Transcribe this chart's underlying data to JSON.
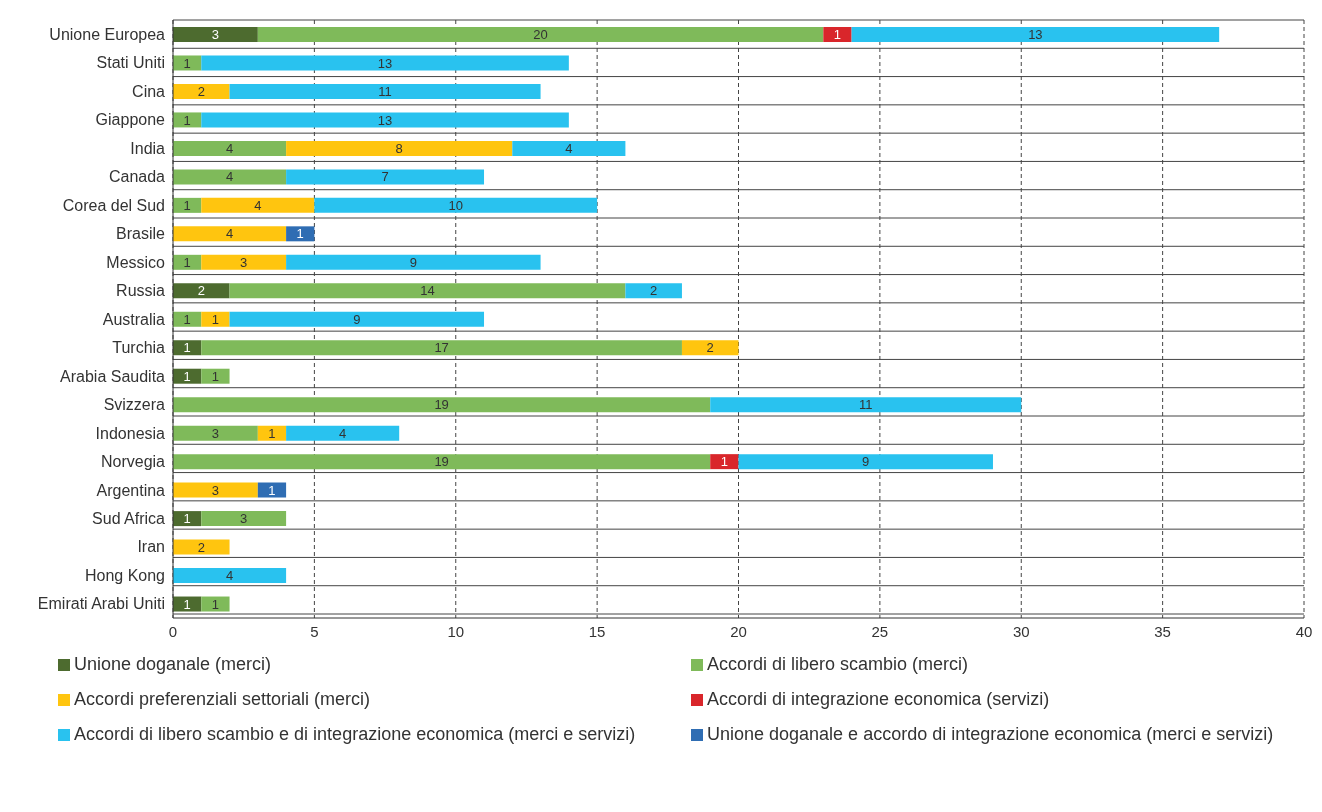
{
  "chart_data": {
    "type": "bar",
    "orientation": "horizontal",
    "stacked": true,
    "data_labels": true,
    "grid": true,
    "legend": "bottom",
    "categories": [
      "Unione Europea",
      "Stati Uniti",
      "Cina",
      "Giappone",
      "India",
      "Canada",
      "Corea del Sud",
      "Brasile",
      "Messico",
      "Russia",
      "Australia",
      "Turchia",
      "Arabia Saudita",
      "Svizzera",
      "Indonesia",
      "Norvegia",
      "Argentina",
      "Sud Africa",
      "Iran",
      "Hong Kong",
      "Emirati Arabi Uniti"
    ],
    "xlim": [
      0,
      40
    ],
    "xticks": [
      0,
      5,
      10,
      15,
      20,
      25,
      30,
      35,
      40
    ],
    "series": [
      {
        "name": "Unione doganale (merci)",
        "color": "#4d6b2f",
        "values": [
          3,
          null,
          null,
          null,
          null,
          null,
          null,
          null,
          null,
          2,
          null,
          1,
          1,
          null,
          null,
          null,
          null,
          1,
          null,
          null,
          1
        ]
      },
      {
        "name": "Accordi di libero scambio (merci)",
        "color": "#7fba5a",
        "values": [
          20,
          1,
          null,
          1,
          4,
          4,
          1,
          null,
          1,
          14,
          1,
          17,
          1,
          19,
          3,
          19,
          null,
          3,
          null,
          null,
          1
        ]
      },
      {
        "name": "Accordi preferenziali settoriali (merci)",
        "color": "#ffc50f",
        "values": [
          null,
          null,
          2,
          null,
          8,
          null,
          4,
          4,
          3,
          null,
          1,
          2,
          null,
          null,
          1,
          null,
          3,
          null,
          2,
          null,
          null
        ]
      },
      {
        "name": "Accordi di integrazione economica (servizi)",
        "color": "#d9262b",
        "values": [
          1,
          null,
          null,
          null,
          null,
          null,
          null,
          null,
          null,
          null,
          null,
          null,
          null,
          null,
          null,
          1,
          null,
          null,
          null,
          null,
          null
        ]
      },
      {
        "name": "Accordi di libero scambio e di integrazione economica (merci e servizi)",
        "color": "#29c2ef",
        "values": [
          13,
          13,
          11,
          13,
          4,
          7,
          10,
          null,
          9,
          2,
          9,
          null,
          null,
          11,
          4,
          9,
          null,
          null,
          null,
          4,
          null
        ]
      },
      {
        "name": "Unione doganale e accordo di integrazione economica (merci e servizi)",
        "color": "#2f6db3",
        "values": [
          null,
          null,
          null,
          null,
          null,
          null,
          null,
          1,
          null,
          null,
          null,
          null,
          null,
          null,
          null,
          null,
          1,
          null,
          null,
          null,
          null
        ]
      }
    ]
  }
}
